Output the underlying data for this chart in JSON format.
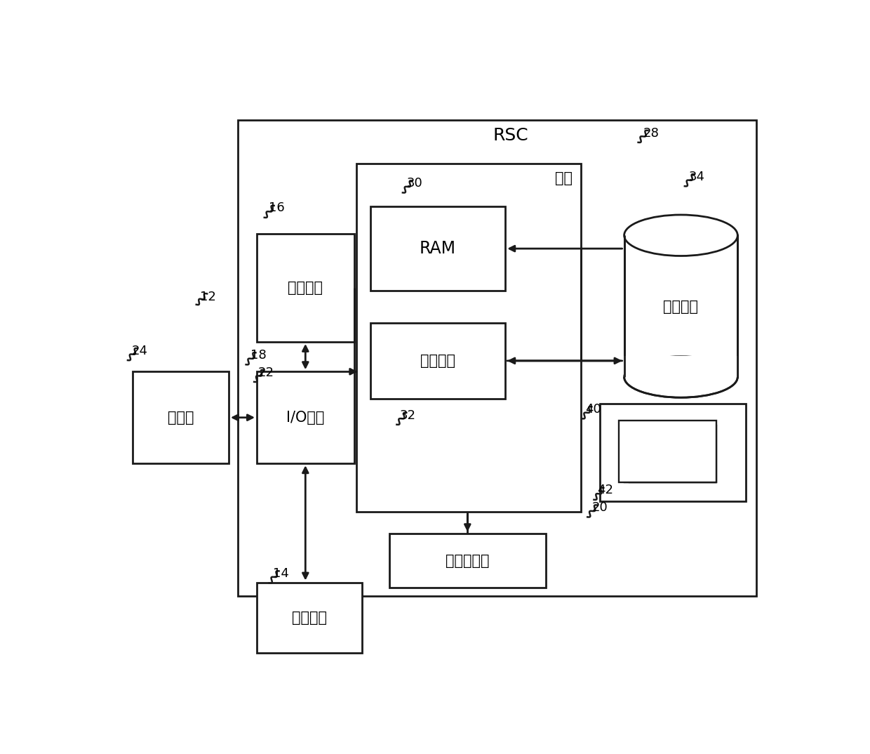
{
  "fig_width": 12.4,
  "fig_height": 10.74,
  "bg_color": "#ffffff",
  "line_color": "#1a1a1a",
  "text_color": "#000000",
  "font_size_main": 15,
  "font_size_number": 12,
  "title_rsc": "RSC",
  "label_memory": "内存",
  "label_ram": "RAM",
  "label_cache": "高速缓存",
  "label_storage": "存储系统",
  "label_cpu": "处理单元",
  "label_io": "I/O接口",
  "label_display": "显示器",
  "label_external": "外部设备",
  "label_network": "网络适配器",
  "num_12": "12",
  "num_14": "14",
  "num_16": "16",
  "num_18": "18",
  "num_20": "20",
  "num_22": "22",
  "num_24": "24",
  "num_28": "28",
  "num_30": "30",
  "num_32": "32",
  "num_34": "34",
  "num_40": "40",
  "num_42": "42"
}
